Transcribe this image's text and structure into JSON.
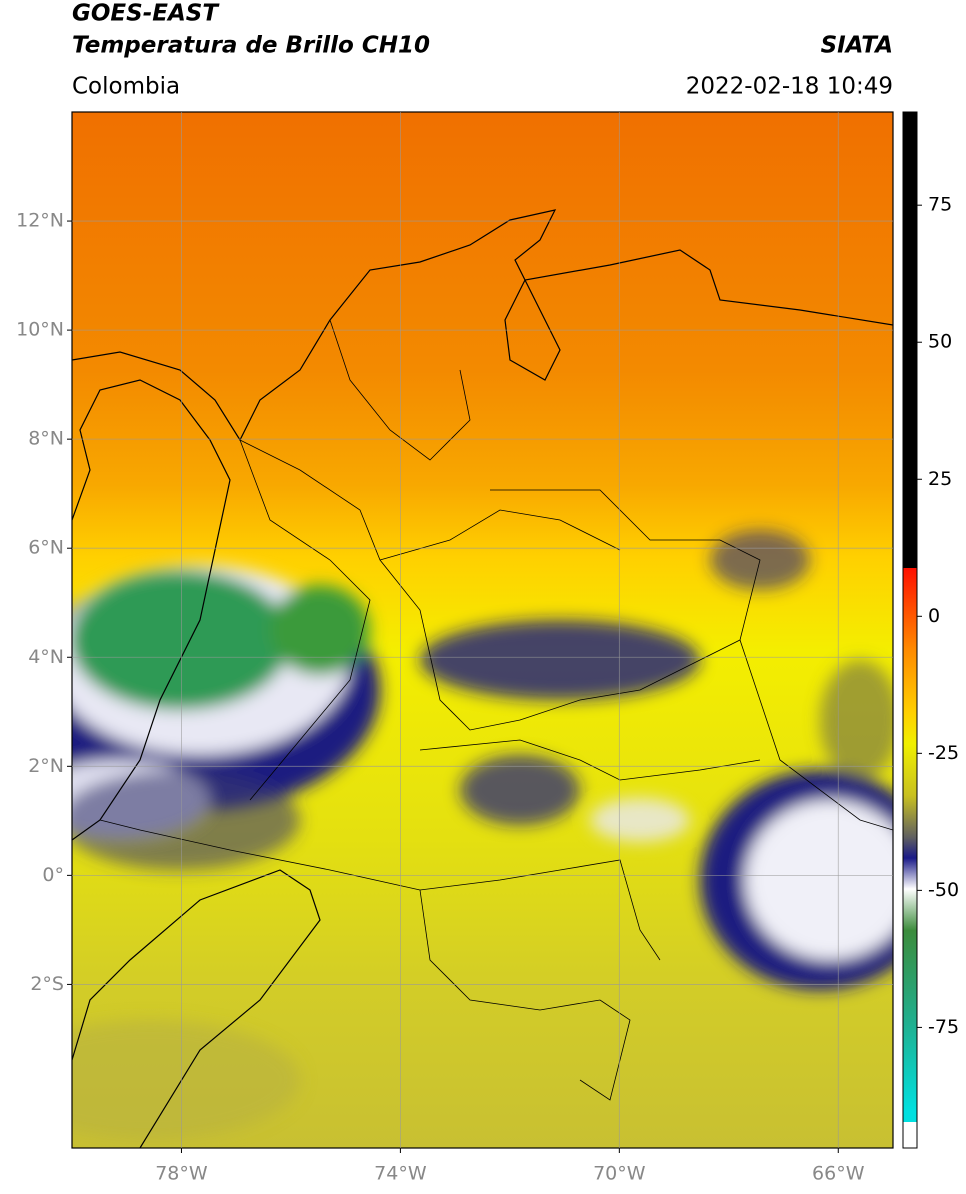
{
  "header": {
    "title": "GOES-EAST",
    "subtitle": "Temperatura de Brillo CH10",
    "source": "SIATA",
    "region": "Colombia",
    "timestamp": "2022-02-18 10:49"
  },
  "map": {
    "type": "map",
    "xlim": [
      -80,
      -65
    ],
    "ylim": [
      -5,
      14
    ],
    "grid": true,
    "xticks": [
      {
        "value": -78,
        "label": "78°W"
      },
      {
        "value": -74,
        "label": "74°W"
      },
      {
        "value": -70,
        "label": "70°W"
      },
      {
        "value": -66,
        "label": "66°W"
      }
    ],
    "yticks": [
      {
        "value": 12,
        "label": "12°N"
      },
      {
        "value": 10,
        "label": "10°N"
      },
      {
        "value": 8,
        "label": "8°N"
      },
      {
        "value": 6,
        "label": "6°N"
      },
      {
        "value": 4,
        "label": "4°N"
      },
      {
        "value": 2,
        "label": "2°N"
      },
      {
        "value": 0,
        "label": "0°"
      },
      {
        "value": -2,
        "label": "2°S"
      }
    ]
  },
  "colorbar": {
    "lim": [
      -97,
      92
    ],
    "ticks": [
      75,
      50,
      25,
      0,
      -25,
      -50,
      -75
    ]
  }
}
